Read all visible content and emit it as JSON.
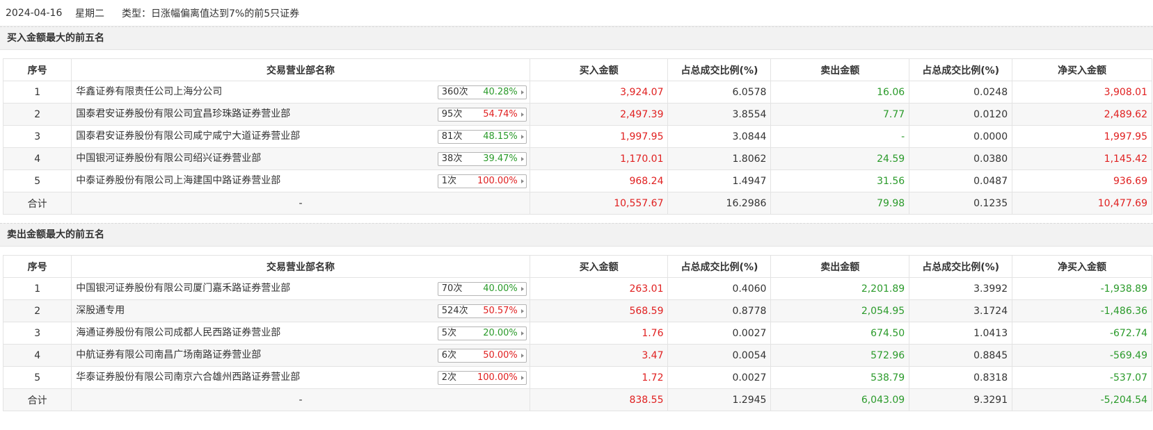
{
  "header": {
    "date": "2024-04-16",
    "weekday": "星期二",
    "type_text": "类型：日涨幅偏离值达到7%的前5只证券"
  },
  "columns": [
    "序号",
    "交易营业部名称",
    "买入金额",
    "占总成交比例(%)",
    "卖出金额",
    "占总成交比例(%)",
    "净买入金额"
  ],
  "buy_section": {
    "title": "买入金额最大的前五名",
    "rows": [
      {
        "idx": "1",
        "name": "华鑫证券有限责任公司上海分公司",
        "count": "360次",
        "rate": "40.28%",
        "buy": "3,924.07",
        "buy_pct": "6.0578",
        "sell": "16.06",
        "sell_pct": "0.0248",
        "net": "3,908.01"
      },
      {
        "idx": "2",
        "name": "国泰君安证券股份有限公司宜昌珍珠路证券营业部",
        "count": "95次",
        "rate": "54.74%",
        "buy": "2,497.39",
        "buy_pct": "3.8554",
        "sell": "7.77",
        "sell_pct": "0.0120",
        "net": "2,489.62"
      },
      {
        "idx": "3",
        "name": "国泰君安证券股份有限公司咸宁咸宁大道证券营业部",
        "count": "81次",
        "rate": "48.15%",
        "buy": "1,997.95",
        "buy_pct": "3.0844",
        "sell": "-",
        "sell_pct": "0.0000",
        "net": "1,997.95"
      },
      {
        "idx": "4",
        "name": "中国银河证券股份有限公司绍兴证券营业部",
        "count": "38次",
        "rate": "39.47%",
        "buy": "1,170.01",
        "buy_pct": "1.8062",
        "sell": "24.59",
        "sell_pct": "0.0380",
        "net": "1,145.42"
      },
      {
        "idx": "5",
        "name": "中泰证券股份有限公司上海建国中路证券营业部",
        "count": "1次",
        "rate": "100.00%",
        "buy": "968.24",
        "buy_pct": "1.4947",
        "sell": "31.56",
        "sell_pct": "0.0487",
        "net": "936.69"
      }
    ],
    "total": {
      "label": "合计",
      "name": "-",
      "buy": "10,557.67",
      "buy_pct": "16.2986",
      "sell": "79.98",
      "sell_pct": "0.1235",
      "net": "10,477.69"
    }
  },
  "sell_section": {
    "title": "卖出金额最大的前五名",
    "rows": [
      {
        "idx": "1",
        "name": "中国银河证券股份有限公司厦门嘉禾路证券营业部",
        "count": "70次",
        "rate": "40.00%",
        "buy": "263.01",
        "buy_pct": "0.4060",
        "sell": "2,201.89",
        "sell_pct": "3.3992",
        "net": "-1,938.89"
      },
      {
        "idx": "2",
        "name": "深股通专用",
        "count": "524次",
        "rate": "50.57%",
        "buy": "568.59",
        "buy_pct": "0.8778",
        "sell": "2,054.95",
        "sell_pct": "3.1724",
        "net": "-1,486.36"
      },
      {
        "idx": "3",
        "name": "海通证券股份有限公司成都人民西路证券营业部",
        "count": "5次",
        "rate": "20.00%",
        "buy": "1.76",
        "buy_pct": "0.0027",
        "sell": "674.50",
        "sell_pct": "1.0413",
        "net": "-672.74"
      },
      {
        "idx": "4",
        "name": "中航证券有限公司南昌广场南路证券营业部",
        "count": "6次",
        "rate": "50.00%",
        "buy": "3.47",
        "buy_pct": "0.0054",
        "sell": "572.96",
        "sell_pct": "0.8845",
        "net": "-569.49"
      },
      {
        "idx": "5",
        "name": "华泰证券股份有限公司南京六合雄州西路证券营业部",
        "count": "2次",
        "rate": "100.00%",
        "buy": "1.72",
        "buy_pct": "0.0027",
        "sell": "538.79",
        "sell_pct": "0.8318",
        "net": "-537.07"
      }
    ],
    "total": {
      "label": "合计",
      "name": "-",
      "buy": "838.55",
      "buy_pct": "1.2945",
      "sell": "6,043.09",
      "sell_pct": "9.3291",
      "net": "-5,204.54"
    }
  },
  "colors": {
    "positive": "#e02020",
    "negative": "#2a9a2a",
    "rate_green": "#2a9a2a",
    "rate_red": "#e02020"
  }
}
